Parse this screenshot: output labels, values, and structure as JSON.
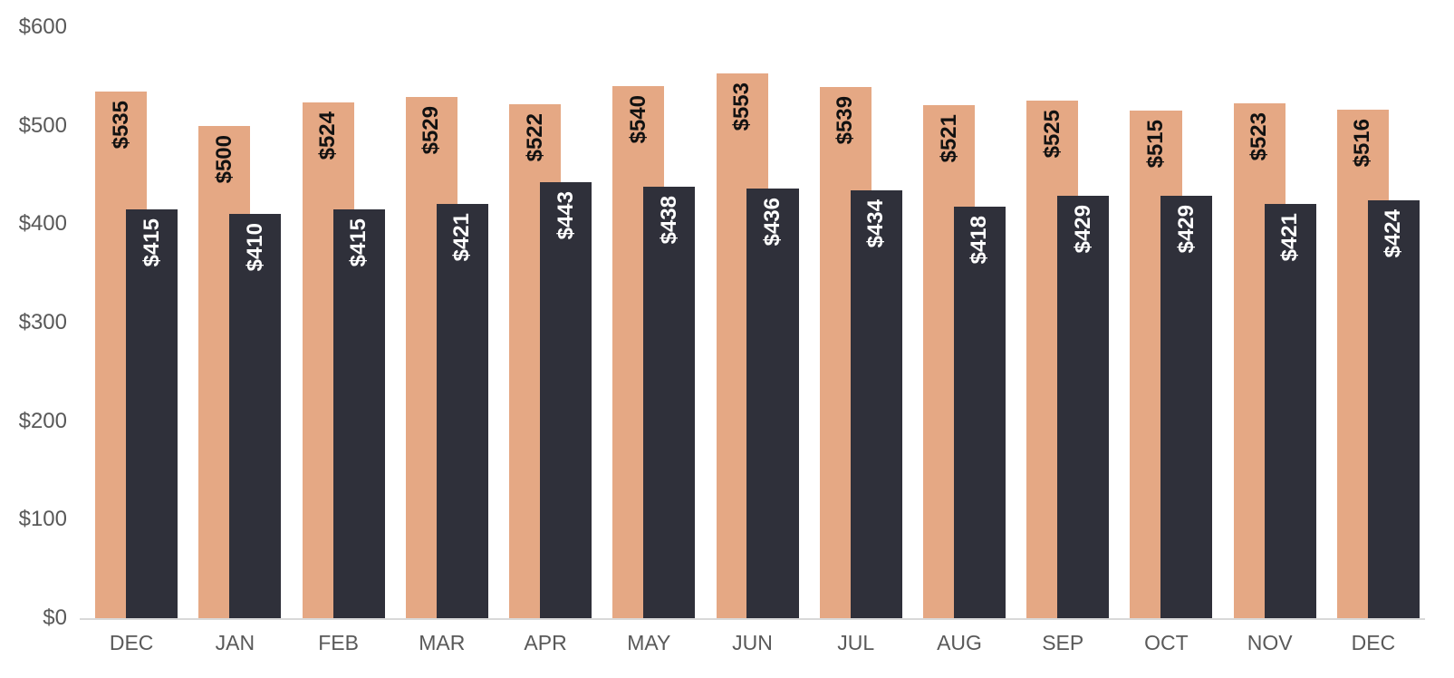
{
  "chart_data": {
    "type": "bar",
    "title": "",
    "legend": false,
    "grid": false,
    "categories": [
      "DEC",
      "JAN",
      "FEB",
      "MAR",
      "APR",
      "MAY",
      "JUN",
      "JUL",
      "AUG",
      "SEP",
      "OCT",
      "NOV",
      "DEC"
    ],
    "series": [
      {
        "id": "series-a",
        "color": "#E5A884",
        "label_color": "#111111",
        "values": [
          535,
          500,
          524,
          529,
          522,
          540,
          553,
          539,
          521,
          525,
          515,
          523,
          516
        ],
        "labels": [
          "$535",
          "$500",
          "$524",
          "$529",
          "$522",
          "$540",
          "$553",
          "$539",
          "$521",
          "$525",
          "$515",
          "$523",
          "$516"
        ]
      },
      {
        "id": "series-b",
        "color": "#2F303A",
        "label_color": "#FFFFFF",
        "values": [
          415,
          410,
          415,
          421,
          443,
          438,
          436,
          434,
          418,
          429,
          429,
          421,
          424
        ],
        "labels": [
          "$415",
          "$410",
          "$415",
          "$421",
          "$443",
          "$438",
          "$436",
          "$434",
          "$418",
          "$429",
          "$429",
          "$421",
          "$424"
        ]
      }
    ],
    "y_axis": {
      "min": 0,
      "max": 600,
      "step": 100,
      "ticks": [
        {
          "value": 0,
          "label": "$0"
        },
        {
          "value": 100,
          "label": "$100"
        },
        {
          "value": 200,
          "label": "$200"
        },
        {
          "value": 300,
          "label": "$300"
        },
        {
          "value": 400,
          "label": "$400"
        },
        {
          "value": 500,
          "label": "$500"
        },
        {
          "value": 600,
          "label": "$600"
        }
      ]
    },
    "axis_colors": {
      "tick_text": "#595959",
      "axis_line": "#D9D9D9"
    }
  }
}
